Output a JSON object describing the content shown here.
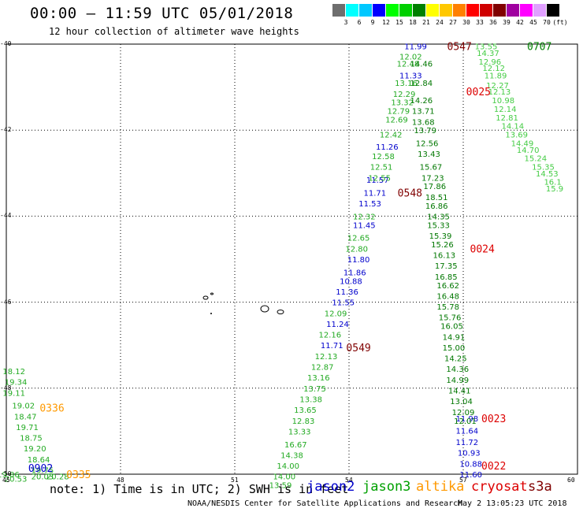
{
  "header": {
    "title": "00:00 – 11:59 UTC 05/01/2018",
    "subtitle": "12 hour collection of altimeter wave heights"
  },
  "colorbar": {
    "labels": [
      "3",
      "6",
      "9",
      "12",
      "15",
      "18",
      "21",
      "24",
      "27",
      "30",
      "33",
      "36",
      "39",
      "42",
      "45",
      "70",
      "(ft)"
    ],
    "colors": [
      "#6e6e6e",
      "#00ffff",
      "#00c8ff",
      "#0000ff",
      "#00ff00",
      "#00d000",
      "#008000",
      "#ffff00",
      "#ffc800",
      "#ff8000",
      "#ff0000",
      "#d00000",
      "#800000",
      "#a000a0",
      "#ff00ff",
      "#e0a0ff",
      "#000000"
    ]
  },
  "legend": {
    "note": "note: 1) Time is in UTC; 2) SWH is in feet",
    "satellites": [
      {
        "name": "jason2",
        "color": "#0000cc"
      },
      {
        "name": "jason3",
        "color": "#00a000"
      },
      {
        "name": "altika",
        "color": "#ff9900"
      },
      {
        "name": "cryosat",
        "color": "#dd0000"
      },
      {
        "name": "s3a",
        "color": "#800000"
      }
    ]
  },
  "footer": {
    "credit": "NOAA/NESDIS Center for Satellite Applications and Research",
    "timestamp": "May  2 13:05:23 UTC 2018"
  },
  "axes": {
    "x_ticks": [
      "45",
      "48",
      "51",
      "54",
      "57",
      "60"
    ],
    "y_ticks": [
      "-40",
      "-42",
      "-44",
      "-46",
      "-48",
      "-50"
    ],
    "x_range": [
      45,
      60
    ],
    "y_range": [
      -50,
      -40
    ]
  },
  "chart_data": {
    "type": "scatter",
    "title": "12 hour collection of altimeter wave heights",
    "xlabel": "",
    "ylabel": "",
    "xlim": [
      45,
      60
    ],
    "ylim": [
      -50,
      -40
    ],
    "grid": true,
    "time_labels": [
      {
        "text": "0547",
        "lon": 56.9,
        "lat": -40.05,
        "color": "#800000"
      },
      {
        "text": "0707",
        "lon": 59.0,
        "lat": -40.05,
        "color": "#008000"
      },
      {
        "text": "0025",
        "lon": 57.4,
        "lat": -41.1,
        "color": "#dd0000"
      },
      {
        "text": "0548",
        "lon": 55.6,
        "lat": -43.45,
        "color": "#800000"
      },
      {
        "text": "0024",
        "lon": 57.5,
        "lat": -44.75,
        "color": "#dd0000"
      },
      {
        "text": "0549",
        "lon": 54.25,
        "lat": -47.05,
        "color": "#800000"
      },
      {
        "text": "0336",
        "lon": 46.2,
        "lat": -48.45,
        "color": "#ff9900"
      },
      {
        "text": "0023",
        "lon": 57.8,
        "lat": -48.7,
        "color": "#dd0000"
      },
      {
        "text": "0022",
        "lon": 57.8,
        "lat": -49.8,
        "color": "#dd0000"
      },
      {
        "text": "0335",
        "lon": 46.9,
        "lat": -50.0,
        "color": "#ff9900"
      },
      {
        "text": "0902",
        "lon": 45.9,
        "lat": -49.85,
        "color": "#0000cc"
      }
    ],
    "series": [
      {
        "name": "jason2 (west track)",
        "color": "#0000cc",
        "points": [
          {
            "lon": 55.75,
            "lat": -40.05,
            "swh": "11.99"
          },
          {
            "lon": 55.62,
            "lat": -40.72,
            "swh": "11.33"
          },
          {
            "lon": 55.0,
            "lat": -42.38,
            "swh": "11.26"
          },
          {
            "lon": 54.75,
            "lat": -43.15,
            "swh": "11.57"
          },
          {
            "lon": 54.68,
            "lat": -43.45,
            "swh": "11.71"
          },
          {
            "lon": 54.55,
            "lat": -43.7,
            "swh": "11.53"
          },
          {
            "lon": 54.4,
            "lat": -44.2,
            "swh": "11.45"
          },
          {
            "lon": 54.25,
            "lat": -45.0,
            "swh": "11.80"
          },
          {
            "lon": 54.15,
            "lat": -45.3,
            "swh": "11.86"
          },
          {
            "lon": 54.05,
            "lat": -45.5,
            "swh": "10.88"
          },
          {
            "lon": 53.95,
            "lat": -45.75,
            "swh": "11.36"
          },
          {
            "lon": 53.85,
            "lat": -46.0,
            "swh": "11.55"
          },
          {
            "lon": 53.7,
            "lat": -46.5,
            "swh": "11.24"
          },
          {
            "lon": 53.55,
            "lat": -47.0,
            "swh": "11.71"
          },
          {
            "lon": 57.1,
            "lat": -48.7,
            "swh": "11.98"
          },
          {
            "lon": 57.1,
            "lat": -48.98,
            "swh": "11.64"
          },
          {
            "lon": 57.1,
            "lat": -49.25,
            "swh": "11.72"
          },
          {
            "lon": 57.15,
            "lat": -49.5,
            "swh": "10.93"
          },
          {
            "lon": 57.2,
            "lat": -49.75,
            "swh": "10.88"
          },
          {
            "lon": 57.2,
            "lat": -50.0,
            "swh": "11.60"
          }
        ]
      },
      {
        "name": "jason3 / mixed (central tracks)",
        "color": "#22aa22",
        "points": [
          {
            "lon": 55.62,
            "lat": -40.28,
            "swh": "12.02"
          },
          {
            "lon": 55.55,
            "lat": -40.45,
            "swh": "12.48"
          },
          {
            "lon": 55.5,
            "lat": -40.9,
            "swh": "13.16"
          },
          {
            "lon": 55.45,
            "lat": -41.15,
            "swh": "12.29"
          },
          {
            "lon": 55.4,
            "lat": -41.35,
            "swh": "13.32"
          },
          {
            "lon": 55.3,
            "lat": -41.55,
            "swh": "12.79"
          },
          {
            "lon": 55.25,
            "lat": -41.75,
            "swh": "12.69"
          },
          {
            "lon": 55.1,
            "lat": -42.1,
            "swh": "12.42"
          },
          {
            "lon": 54.9,
            "lat": -42.6,
            "swh": "12.58"
          },
          {
            "lon": 54.85,
            "lat": -42.85,
            "swh": "12.51"
          },
          {
            "lon": 54.8,
            "lat": -43.1,
            "swh": "12.55"
          },
          {
            "lon": 54.4,
            "lat": -44.0,
            "swh": "12.32"
          },
          {
            "lon": 54.25,
            "lat": -44.5,
            "swh": "12.65"
          },
          {
            "lon": 54.2,
            "lat": -44.75,
            "swh": "12.80"
          },
          {
            "lon": 53.65,
            "lat": -46.25,
            "swh": "12.09"
          },
          {
            "lon": 53.5,
            "lat": -46.75,
            "swh": "12.16"
          },
          {
            "lon": 53.4,
            "lat": -47.25,
            "swh": "12.13"
          },
          {
            "lon": 53.3,
            "lat": -47.5,
            "swh": "12.87"
          },
          {
            "lon": 53.2,
            "lat": -47.75,
            "swh": "13.16"
          },
          {
            "lon": 53.1,
            "lat": -48.0,
            "swh": "13.75"
          },
          {
            "lon": 53.0,
            "lat": -48.25,
            "swh": "13.38"
          },
          {
            "lon": 52.85,
            "lat": -48.5,
            "swh": "13.65"
          },
          {
            "lon": 52.8,
            "lat": -48.75,
            "swh": "12.83"
          },
          {
            "lon": 52.7,
            "lat": -49.0,
            "swh": "13.33"
          },
          {
            "lon": 52.6,
            "lat": -49.3,
            "swh": "16.67"
          },
          {
            "lon": 52.5,
            "lat": -49.55,
            "swh": "14.38"
          },
          {
            "lon": 52.4,
            "lat": -49.8,
            "swh": "14.00"
          },
          {
            "lon": 52.3,
            "lat": -50.05,
            "swh": "14.00"
          },
          {
            "lon": 52.2,
            "lat": -50.25,
            "swh": "13.59"
          }
        ]
      },
      {
        "name": "jason3 (east-central track)",
        "color": "#007700",
        "points": [
          {
            "lon": 55.9,
            "lat": -40.45,
            "swh": "14.46"
          },
          {
            "lon": 55.9,
            "lat": -40.9,
            "swh": "12.84"
          },
          {
            "lon": 55.9,
            "lat": -41.3,
            "swh": "14.26"
          },
          {
            "lon": 55.95,
            "lat": -41.55,
            "swh": "13.71"
          },
          {
            "lon": 55.95,
            "lat": -41.8,
            "swh": "13.68"
          },
          {
            "lon": 56.0,
            "lat": -42.0,
            "swh": "13.79"
          },
          {
            "lon": 56.05,
            "lat": -42.3,
            "swh": "12.56"
          },
          {
            "lon": 56.1,
            "lat": -42.55,
            "swh": "13.43"
          },
          {
            "lon": 56.15,
            "lat": -42.85,
            "swh": "15.67"
          },
          {
            "lon": 56.2,
            "lat": -43.1,
            "swh": "17.23"
          },
          {
            "lon": 56.25,
            "lat": -43.3,
            "swh": "17.86"
          },
          {
            "lon": 56.3,
            "lat": -43.55,
            "swh": "18.51"
          },
          {
            "lon": 56.3,
            "lat": -43.75,
            "swh": "16.86"
          },
          {
            "lon": 56.35,
            "lat": -44.0,
            "swh": "14.35"
          },
          {
            "lon": 56.35,
            "lat": -44.2,
            "swh": "15.33"
          },
          {
            "lon": 56.4,
            "lat": -44.45,
            "swh": "15.39"
          },
          {
            "lon": 56.45,
            "lat": -44.65,
            "swh": "15.26"
          },
          {
            "lon": 56.5,
            "lat": -44.9,
            "swh": "16.13"
          },
          {
            "lon": 56.55,
            "lat": -45.15,
            "swh": "17.35"
          },
          {
            "lon": 56.55,
            "lat": -45.4,
            "swh": "16.85"
          },
          {
            "lon": 56.6,
            "lat": -45.6,
            "swh": "16.62"
          },
          {
            "lon": 56.6,
            "lat": -45.85,
            "swh": "16.48"
          },
          {
            "lon": 56.6,
            "lat": -46.1,
            "swh": "15.78"
          },
          {
            "lon": 56.65,
            "lat": -46.35,
            "swh": "15.76"
          },
          {
            "lon": 56.7,
            "lat": -46.55,
            "swh": "16.05"
          },
          {
            "lon": 56.75,
            "lat": -46.8,
            "swh": "14.91"
          },
          {
            "lon": 56.75,
            "lat": -47.05,
            "swh": "15.00"
          },
          {
            "lon": 56.8,
            "lat": -47.3,
            "swh": "14.25"
          },
          {
            "lon": 56.85,
            "lat": -47.55,
            "swh": "14.36"
          },
          {
            "lon": 56.85,
            "lat": -47.8,
            "swh": "14.99"
          },
          {
            "lon": 56.9,
            "lat": -48.05,
            "swh": "14.41"
          },
          {
            "lon": 56.95,
            "lat": -48.3,
            "swh": "13.04"
          },
          {
            "lon": 57.0,
            "lat": -48.55,
            "swh": "12.09"
          },
          {
            "lon": 57.05,
            "lat": -48.75,
            "swh": "12.01"
          }
        ]
      },
      {
        "name": "s3a (east track)",
        "color": "#44cc44",
        "points": [
          {
            "lon": 57.6,
            "lat": -40.05,
            "swh": "13.55"
          },
          {
            "lon": 57.65,
            "lat": -40.2,
            "swh": "14.37"
          },
          {
            "lon": 57.7,
            "lat": -40.4,
            "swh": "12.96"
          },
          {
            "lon": 57.8,
            "lat": -40.55,
            "swh": "12.12"
          },
          {
            "lon": 57.85,
            "lat": -40.72,
            "swh": "11.89"
          },
          {
            "lon": 57.9,
            "lat": -40.95,
            "swh": "12.27"
          },
          {
            "lon": 57.95,
            "lat": -41.1,
            "swh": "12.13"
          },
          {
            "lon": 58.05,
            "lat": -41.3,
            "swh": "10.98"
          },
          {
            "lon": 58.1,
            "lat": -41.5,
            "swh": "12.14"
          },
          {
            "lon": 58.15,
            "lat": -41.7,
            "swh": "12.81"
          },
          {
            "lon": 58.3,
            "lat": -41.9,
            "swh": "14.14"
          },
          {
            "lon": 58.4,
            "lat": -42.1,
            "swh": "13.69"
          },
          {
            "lon": 58.55,
            "lat": -42.3,
            "swh": "14.49"
          },
          {
            "lon": 58.7,
            "lat": -42.45,
            "swh": "14.70"
          },
          {
            "lon": 58.9,
            "lat": -42.65,
            "swh": "15.24"
          },
          {
            "lon": 59.1,
            "lat": -42.85,
            "swh": "15.35"
          },
          {
            "lon": 59.2,
            "lat": -43.0,
            "swh": "14.53"
          },
          {
            "lon": 59.35,
            "lat": -43.2,
            "swh": "16.1"
          },
          {
            "lon": 59.4,
            "lat": -43.35,
            "swh": "15.9"
          }
        ]
      },
      {
        "name": "jason3 (west track, 45E)",
        "color": "#22aa22",
        "points": [
          {
            "lon": 45.2,
            "lat": -47.6,
            "swh": "18.12"
          },
          {
            "lon": 45.25,
            "lat": -47.85,
            "swh": "19.34"
          },
          {
            "lon": 45.2,
            "lat": -48.1,
            "swh": "19.11"
          },
          {
            "lon": 45.45,
            "lat": -48.4,
            "swh": "19.02"
          },
          {
            "lon": 45.5,
            "lat": -48.65,
            "swh": "18.47"
          },
          {
            "lon": 45.55,
            "lat": -48.9,
            "swh": "19.71"
          },
          {
            "lon": 45.65,
            "lat": -49.15,
            "swh": "18.75"
          },
          {
            "lon": 45.75,
            "lat": -49.4,
            "swh": "19.20"
          },
          {
            "lon": 45.85,
            "lat": -49.65,
            "swh": "18.64"
          },
          {
            "lon": 45.95,
            "lat": -49.9,
            "swh": "19.75"
          },
          {
            "lon": 45.05,
            "lat": -50.0,
            "swh": "19.86"
          },
          {
            "lon": 45.25,
            "lat": -50.1,
            "swh": "20.53"
          },
          {
            "lon": 45.95,
            "lat": -50.05,
            "swh": "20.03"
          },
          {
            "lon": 46.35,
            "lat": -50.05,
            "swh": "20.28"
          }
        ]
      }
    ]
  }
}
